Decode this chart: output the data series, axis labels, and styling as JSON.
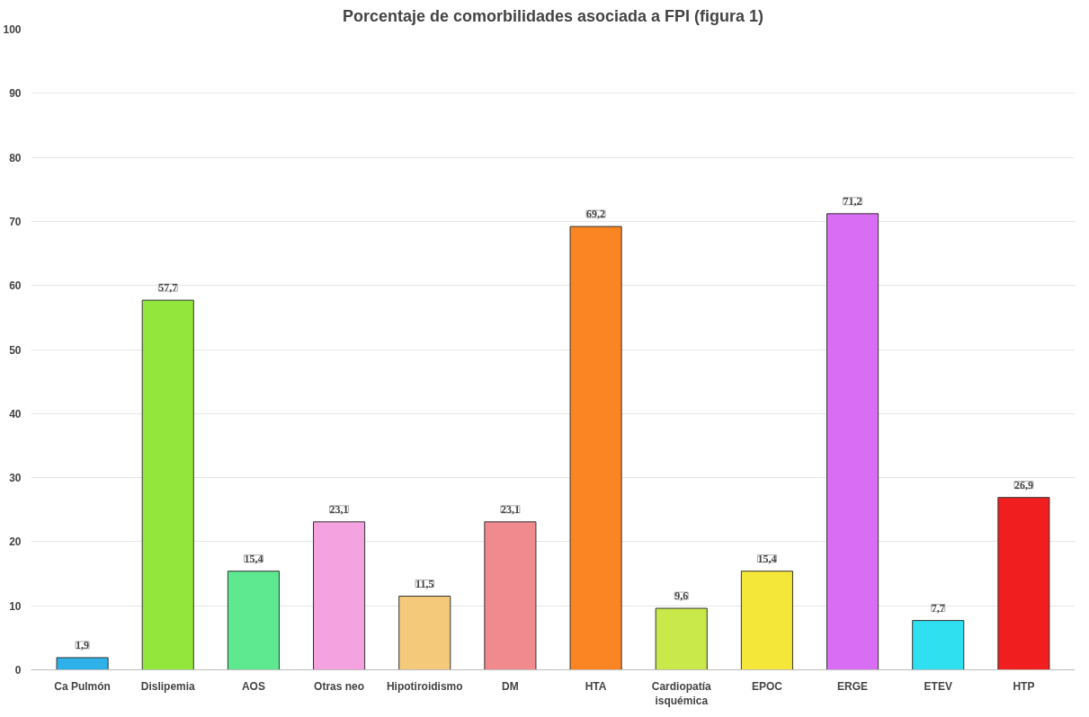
{
  "chart_data": {
    "type": "bar",
    "title": "Porcentaje de comorbilidades asociada a FPI (figura 1)",
    "categories": [
      "Ca Pulmón",
      "Dislipemia",
      "AOS",
      "Otras neo",
      "Hipotiroidismo",
      "DM",
      "HTA",
      "Cardiopatía isquémica",
      "EPOC",
      "ERGE",
      "ETEV",
      "HTP"
    ],
    "values": [
      1.9,
      57.7,
      15.4,
      23.1,
      11.5,
      23.1,
      69.2,
      9.6,
      15.4,
      71.2,
      7.7,
      26.9
    ],
    "value_labels": [
      "1,9",
      "57,7",
      "15,4",
      "23,1",
      "11,5",
      "23,1",
      "69,2",
      "9,6",
      "15,4",
      "71,2",
      "7,7",
      "26,9"
    ],
    "colors": [
      "#2eb0e8",
      "#92e63c",
      "#5ee88f",
      "#f5a3e0",
      "#f5c97a",
      "#f08a8f",
      "#fb8522",
      "#c9e84a",
      "#f5e63a",
      "#d96ef5",
      "#2ee0f0",
      "#f01e1e"
    ],
    "ylim": [
      0,
      100
    ],
    "yticks": [
      0,
      10,
      20,
      30,
      40,
      50,
      60,
      70,
      80,
      90,
      100
    ],
    "grid": "y"
  }
}
